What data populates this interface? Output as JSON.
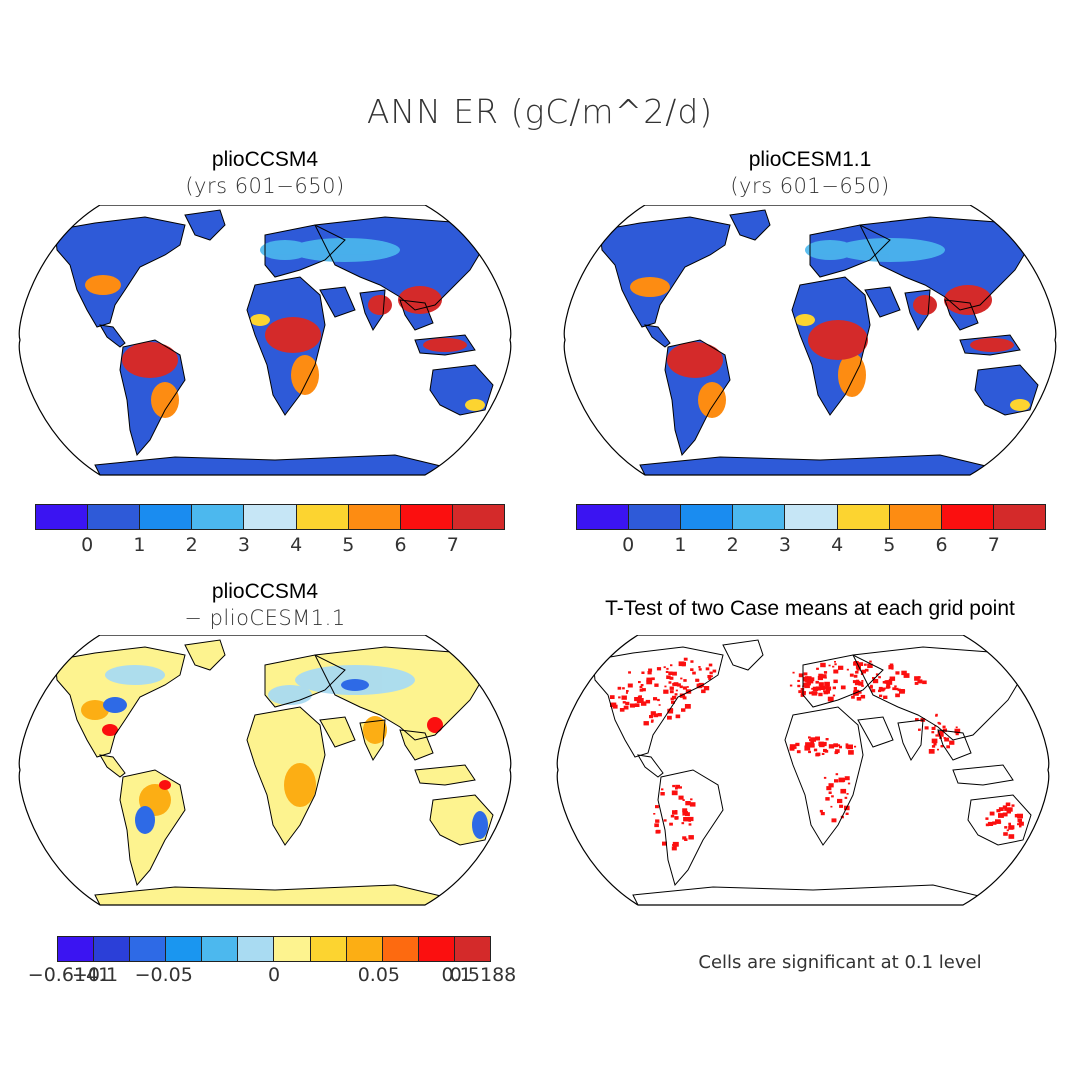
{
  "title": "ANN ER (gC/m^2/d)",
  "panels": {
    "top_left": {
      "title": "plioCCSM4",
      "subtitle": "(yrs 601−650)"
    },
    "top_right": {
      "title": "plioCESM1.1",
      "subtitle": "(yrs 601−650)"
    },
    "bottom_left": {
      "title": "plioCCSM4",
      "subtitle": "− plioCESM1.1"
    },
    "bottom_right": {
      "title": "T-Test of two Case means at each grid point",
      "note": "Cells are significant at 0.1 level"
    }
  },
  "colorbar_top": {
    "colors": [
      "#3b14f2",
      "#2e5ad8",
      "#1a8cf0",
      "#4cb8ee",
      "#c6e6f6",
      "#fcd430",
      "#fd8c12",
      "#fb0f0f",
      "#d42a2a"
    ],
    "labels": [
      "0",
      "1",
      "2",
      "3",
      "4",
      "5",
      "6",
      "7"
    ]
  },
  "colorbar_diff": {
    "colors": [
      "#3b14f2",
      "#2b3fd8",
      "#2e6ae6",
      "#1a96f0",
      "#4cb8ee",
      "#a9dbf2",
      "#fdf38f",
      "#fcd430",
      "#fcae14",
      "#fd6a10",
      "#fb0f0f",
      "#d42a2a"
    ],
    "labels": [
      "−0.6141",
      "−0.1",
      "−0.05",
      "0",
      "0.05",
      "0.1",
      "0.5188"
    ]
  },
  "chart_data": [
    {
      "type": "heatmap",
      "title": "plioCCSM4 (yrs 601−650)",
      "variable": "ANN ER (gC/m^2/d)",
      "legend_levels": [
        0,
        1,
        2,
        3,
        4,
        5,
        6,
        7
      ]
    },
    {
      "type": "heatmap",
      "title": "plioCESM1.1 (yrs 601−650)",
      "variable": "ANN ER (gC/m^2/d)",
      "legend_levels": [
        0,
        1,
        2,
        3,
        4,
        5,
        6,
        7
      ]
    },
    {
      "type": "heatmap",
      "title": "plioCCSM4 − plioCESM1.1",
      "variable": "ANN ER (gC/m^2/d)",
      "legend_levels": [
        -0.6141,
        -0.1,
        -0.05,
        0,
        0.05,
        0.1,
        0.5188
      ]
    },
    {
      "type": "heatmap",
      "title": "T-Test of two Case means at each grid point",
      "annotation": "Cells are significant at 0.1 level"
    }
  ]
}
